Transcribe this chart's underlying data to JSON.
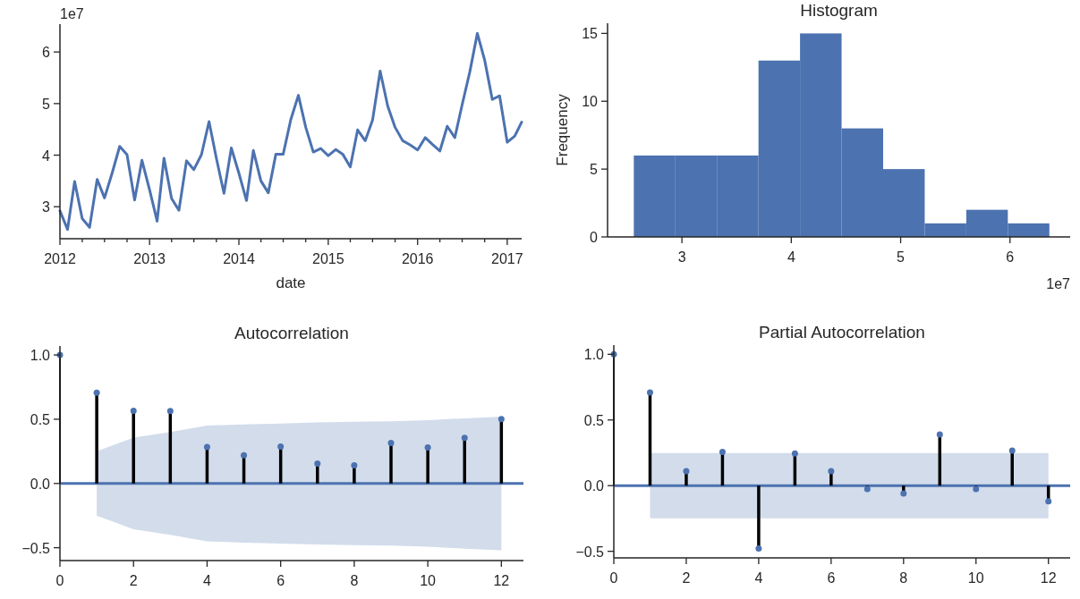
{
  "chart_data": [
    {
      "type": "line",
      "xlabel": "date",
      "annotations": [
        "1e7"
      ],
      "x": [
        "2012-01",
        "2012-02",
        "2012-03",
        "2012-04",
        "2012-05",
        "2012-06",
        "2012-07",
        "2012-08",
        "2012-09",
        "2012-10",
        "2012-11",
        "2012-12",
        "2013-01",
        "2013-02",
        "2013-03",
        "2013-04",
        "2013-05",
        "2013-06",
        "2013-07",
        "2013-08",
        "2013-09",
        "2013-10",
        "2013-11",
        "2013-12",
        "2014-01",
        "2014-02",
        "2014-03",
        "2014-04",
        "2014-05",
        "2014-06",
        "2014-07",
        "2014-08",
        "2014-09",
        "2014-10",
        "2014-11",
        "2014-12",
        "2015-01",
        "2015-02",
        "2015-03",
        "2015-04",
        "2015-05",
        "2015-06",
        "2015-07",
        "2015-08",
        "2015-09",
        "2015-10",
        "2015-11",
        "2015-12",
        "2016-01",
        "2016-02",
        "2016-03",
        "2016-04",
        "2016-05",
        "2016-06",
        "2016-07",
        "2016-08",
        "2016-09",
        "2016-10",
        "2016-11",
        "2016-12",
        "2017-01",
        "2017-02",
        "2017-03"
      ],
      "series": [
        {
          "color": "#4c72b0",
          "values": [
            2.92,
            2.56,
            3.49,
            2.77,
            2.6,
            3.53,
            3.17,
            3.65,
            4.17,
            4.01,
            3.13,
            3.9,
            3.33,
            2.72,
            3.94,
            3.16,
            2.93,
            3.89,
            3.72,
            4.01,
            4.65,
            3.94,
            3.26,
            4.14,
            3.65,
            3.12,
            4.09,
            3.5,
            3.27,
            4.02,
            4.02,
            4.69,
            5.16,
            4.54,
            4.06,
            4.13,
            3.99,
            4.11,
            4.02,
            3.77,
            4.49,
            4.28,
            4.68,
            5.63,
            4.95,
            4.54,
            4.28,
            4.2,
            4.1,
            4.34,
            4.21,
            4.08,
            4.56,
            4.34,
            4.98,
            5.61,
            6.36,
            5.84,
            5.08,
            5.15,
            4.25,
            4.37,
            4.64
          ]
        }
      ],
      "xlim": [
        "2012-01",
        "2017-03"
      ],
      "xticks": [
        {
          "value": "2012-01",
          "label": "2012"
        },
        {
          "value": "2012-04",
          "label": null
        },
        {
          "value": "2012-07",
          "label": null
        },
        {
          "value": "2012-10",
          "label": null
        },
        {
          "value": "2013-01",
          "label": "2013"
        },
        {
          "value": "2013-04",
          "label": null
        },
        {
          "value": "2013-07",
          "label": null
        },
        {
          "value": "2013-10",
          "label": null
        },
        {
          "value": "2014-01",
          "label": "2014"
        },
        {
          "value": "2014-04",
          "label": null
        },
        {
          "value": "2014-07",
          "label": null
        },
        {
          "value": "2014-10",
          "label": null
        },
        {
          "value": "2015-01",
          "label": "2015"
        },
        {
          "value": "2015-04",
          "label": null
        },
        {
          "value": "2015-07",
          "label": null
        },
        {
          "value": "2015-10",
          "label": null
        },
        {
          "value": "2016-01",
          "label": "2016"
        },
        {
          "value": "2016-04",
          "label": null
        },
        {
          "value": "2016-07",
          "label": null
        },
        {
          "value": "2016-10",
          "label": null
        },
        {
          "value": "2017-01",
          "label": "2017"
        }
      ],
      "ylim": [
        2.38,
        6.54
      ],
      "yticks": [
        3,
        4,
        5,
        6
      ]
    },
    {
      "type": "histogram",
      "title": "Histogram",
      "ylabel": "Frequency",
      "annotations": [
        "1e7"
      ],
      "color": "#4c72b0",
      "bins": [
        2.56,
        2.94,
        3.32,
        3.7,
        4.08,
        4.46,
        4.84,
        5.22,
        5.6,
        5.98,
        6.36
      ],
      "values": [
        6,
        6,
        6,
        13,
        15,
        8,
        5,
        1,
        2,
        1
      ],
      "xlim": [
        2.32,
        6.55
      ],
      "xticks": [
        3,
        4,
        5,
        6
      ],
      "ylim": [
        0,
        15.75
      ],
      "yticks": [
        0,
        5,
        10,
        15
      ]
    },
    {
      "type": "lollipop",
      "title": "Autocorrelation",
      "marker": "circle",
      "series": [
        {
          "color": "#4c72b0",
          "x": [
            0,
            1,
            2,
            3,
            4,
            5,
            6,
            7,
            8,
            9,
            10,
            11,
            12
          ],
          "values": [
            1.0,
            0.707,
            0.565,
            0.563,
            0.283,
            0.219,
            0.288,
            0.155,
            0.141,
            0.315,
            0.28,
            0.355,
            0.501
          ],
          "lower": [
            null,
            -0.25,
            -0.357,
            -0.4,
            -0.45,
            -0.46,
            -0.467,
            -0.475,
            -0.48,
            -0.483,
            -0.493,
            -0.507,
            -0.52
          ],
          "upper": [
            null,
            0.25,
            0.357,
            0.4,
            0.45,
            0.46,
            0.467,
            0.475,
            0.48,
            0.483,
            0.493,
            0.507,
            0.52
          ]
        }
      ],
      "ref_lines": [
        {
          "axis": "y",
          "value": 0,
          "color": "#4c72b0"
        }
      ],
      "xlim": [
        0,
        12.6
      ],
      "xticks": [
        0,
        2,
        4,
        6,
        8,
        10,
        12
      ],
      "ylim": [
        -0.6,
        1.07
      ],
      "yticks": [
        {
          "value": -0.5,
          "label": "−0.5"
        },
        {
          "value": 0,
          "label": "0.0"
        },
        {
          "value": 0.5,
          "label": "0.5"
        },
        {
          "value": 1,
          "label": "1.0"
        }
      ]
    },
    {
      "type": "lollipop",
      "title": "Partial Autocorrelation",
      "marker": "circle",
      "series": [
        {
          "color": "#4c72b0",
          "x": [
            0,
            1,
            2,
            3,
            4,
            5,
            6,
            7,
            8,
            9,
            10,
            11,
            12
          ],
          "values": [
            1.0,
            0.71,
            0.11,
            0.256,
            -0.478,
            0.245,
            0.11,
            -0.026,
            -0.06,
            0.389,
            -0.026,
            0.266,
            -0.12
          ],
          "lower": [
            null,
            -0.248,
            -0.248,
            -0.248,
            -0.248,
            -0.248,
            -0.248,
            -0.248,
            -0.248,
            -0.248,
            -0.248,
            -0.248,
            -0.248
          ],
          "upper": [
            null,
            0.248,
            0.248,
            0.248,
            0.248,
            0.248,
            0.248,
            0.248,
            0.248,
            0.248,
            0.248,
            0.248,
            0.248
          ]
        }
      ],
      "ref_lines": [
        {
          "axis": "y",
          "value": 0,
          "color": "#4c72b0"
        }
      ],
      "xlim": [
        0,
        12.6
      ],
      "xticks": [
        0,
        2,
        4,
        6,
        8,
        10,
        12
      ],
      "ylim": [
        -0.55,
        1.07
      ],
      "yticks": [
        {
          "value": -0.5,
          "label": "−0.5"
        },
        {
          "value": 0,
          "label": "0.0"
        },
        {
          "value": 0.5,
          "label": "0.5"
        },
        {
          "value": 1,
          "label": "1.0"
        }
      ]
    }
  ]
}
